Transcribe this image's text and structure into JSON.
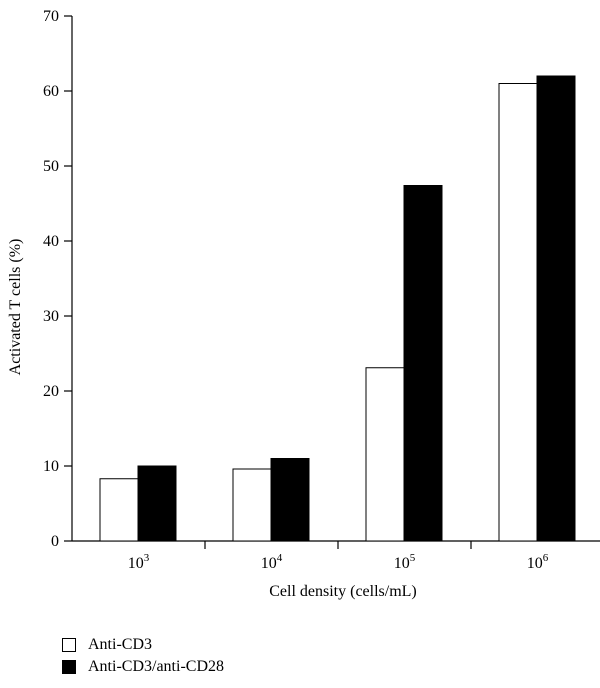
{
  "chart_data": {
    "type": "bar",
    "categories": [
      {
        "base": "10",
        "exp": "3"
      },
      {
        "base": "10",
        "exp": "4"
      },
      {
        "base": "10",
        "exp": "5"
      },
      {
        "base": "10",
        "exp": "6"
      }
    ],
    "series": [
      {
        "name": "Anti-CD3",
        "values": [
          8.3,
          9.6,
          23.1,
          61.0
        ],
        "fill": "#ffffff",
        "stroke": "#000000"
      },
      {
        "name": "Anti-CD3/anti-CD28",
        "values": [
          10.0,
          11.0,
          47.4,
          62.0
        ],
        "fill": "#000000",
        "stroke": "#000000"
      }
    ],
    "xlabel": "Cell density (cells/mL)",
    "ylabel": "Activated T cells (%)",
    "ylim": [
      0,
      70
    ],
    "yticks": [
      0,
      10,
      20,
      30,
      40,
      50,
      60,
      70
    ],
    "grid": false,
    "legend_position": "bottom-left"
  }
}
